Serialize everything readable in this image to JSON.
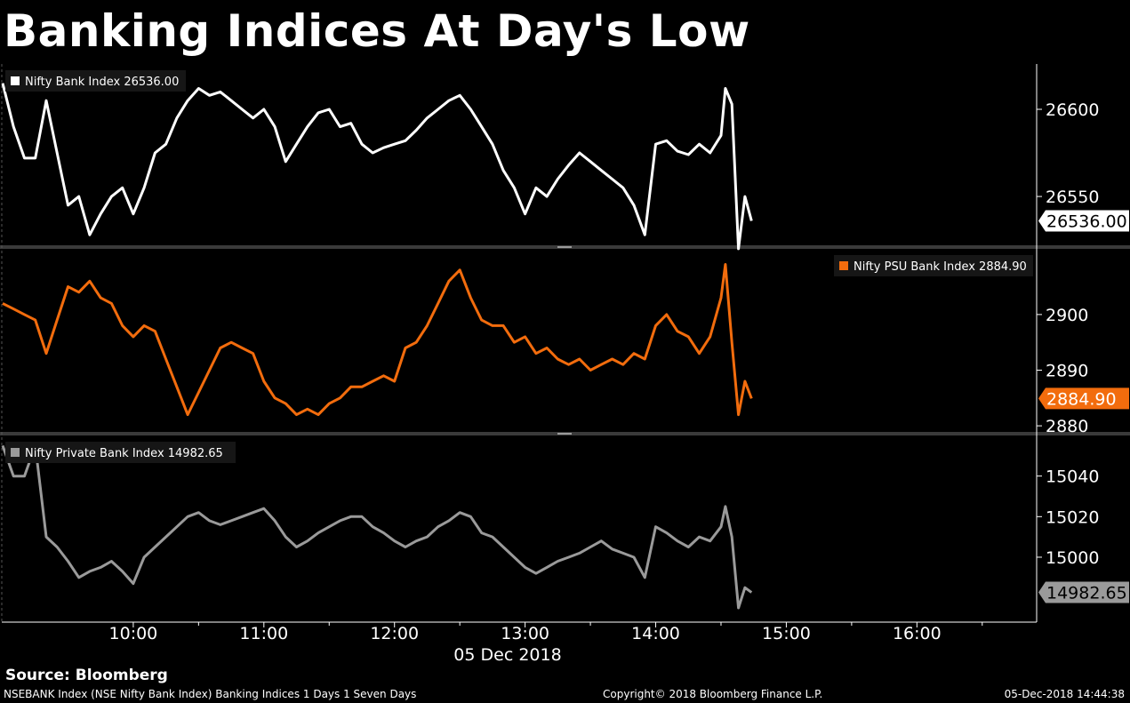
{
  "title": "Banking Indices At Day's Low",
  "source": "Source: Bloomberg",
  "footer": {
    "left": "NSEBANK Index (NSE Nifty Bank Index) Banking Indices 1 Days 1 Seven Days",
    "middle": "Copyright© 2018 Bloomberg Finance L.P.",
    "right": "05-Dec-2018 14:44:38"
  },
  "chart_data": {
    "type": "line",
    "xlabel": "05 Dec 2018",
    "x_ticks": [
      "10:00",
      "11:00",
      "12:00",
      "13:00",
      "14:00",
      "15:00",
      "16:00"
    ],
    "x_range": [
      "09:00",
      "16:55"
    ],
    "grid": false,
    "panels": [
      {
        "name": "Nifty Bank Index",
        "legend": "Nifty Bank Index 26536.00",
        "legend_position": "top-left",
        "color": "#ffffff",
        "last_value": "26536.00",
        "ylim": [
          26522,
          26626
        ],
        "y_ticks": [
          26600,
          26550
        ],
        "x": [
          "09:00",
          "09:05",
          "09:10",
          "09:15",
          "09:20",
          "09:25",
          "09:30",
          "09:35",
          "09:40",
          "09:45",
          "09:50",
          "09:55",
          "10:00",
          "10:05",
          "10:10",
          "10:15",
          "10:20",
          "10:25",
          "10:30",
          "10:35",
          "10:40",
          "10:45",
          "10:50",
          "10:55",
          "11:00",
          "11:05",
          "11:10",
          "11:15",
          "11:20",
          "11:25",
          "11:30",
          "11:35",
          "11:40",
          "11:45",
          "11:50",
          "11:55",
          "12:00",
          "12:05",
          "12:10",
          "12:15",
          "12:20",
          "12:25",
          "12:30",
          "12:35",
          "12:40",
          "12:45",
          "12:50",
          "12:55",
          "13:00",
          "13:05",
          "13:10",
          "13:15",
          "13:20",
          "13:25",
          "13:30",
          "13:35",
          "13:40",
          "13:45",
          "13:50",
          "13:55",
          "14:00",
          "14:05",
          "14:10",
          "14:15",
          "14:20",
          "14:25",
          "14:30",
          "14:32",
          "14:35",
          "14:38",
          "14:41",
          "14:44"
        ],
        "values": [
          26615,
          26590,
          26572,
          26572,
          26605,
          26575,
          26545,
          26550,
          26528,
          26540,
          26550,
          26555,
          26540,
          26555,
          26575,
          26580,
          26595,
          26605,
          26612,
          26608,
          26610,
          26605,
          26600,
          26595,
          26600,
          26590,
          26570,
          26580,
          26590,
          26598,
          26600,
          26590,
          26592,
          26580,
          26575,
          26578,
          26580,
          26582,
          26588,
          26595,
          26600,
          26605,
          26608,
          26600,
          26590,
          26580,
          26565,
          26555,
          26540,
          26555,
          26550,
          26560,
          26568,
          26575,
          26570,
          26565,
          26560,
          26555,
          26545,
          26528,
          26580,
          26582,
          26576,
          26574,
          26580,
          26575,
          26585,
          26612,
          26603,
          26520,
          26550,
          26536
        ]
      },
      {
        "name": "Nifty PSU Bank Index",
        "legend": "Nifty PSU Bank Index 2884.90",
        "legend_position": "top-right",
        "color": "#f26c0d",
        "last_value": "2884.90",
        "ylim": [
          2878.9,
          2911.8
        ],
        "y_ticks": [
          2900,
          2890,
          2880
        ],
        "x": [
          "09:00",
          "09:05",
          "09:10",
          "09:15",
          "09:20",
          "09:25",
          "09:30",
          "09:35",
          "09:40",
          "09:45",
          "09:50",
          "09:55",
          "10:00",
          "10:05",
          "10:10",
          "10:15",
          "10:20",
          "10:25",
          "10:30",
          "10:35",
          "10:40",
          "10:45",
          "10:50",
          "10:55",
          "11:00",
          "11:05",
          "11:10",
          "11:15",
          "11:20",
          "11:25",
          "11:30",
          "11:35",
          "11:40",
          "11:45",
          "11:50",
          "11:55",
          "12:00",
          "12:05",
          "12:10",
          "12:15",
          "12:20",
          "12:25",
          "12:30",
          "12:35",
          "12:40",
          "12:45",
          "12:50",
          "12:55",
          "13:00",
          "13:05",
          "13:10",
          "13:15",
          "13:20",
          "13:25",
          "13:30",
          "13:35",
          "13:40",
          "13:45",
          "13:50",
          "13:55",
          "14:00",
          "14:05",
          "14:10",
          "14:15",
          "14:20",
          "14:25",
          "14:30",
          "14:32",
          "14:35",
          "14:38",
          "14:41",
          "14:44"
        ],
        "values": [
          2902,
          2901,
          2900,
          2899,
          2893,
          2899,
          2905,
          2904,
          2906,
          2903,
          2902,
          2898,
          2896,
          2898,
          2897,
          2892,
          2887,
          2882,
          2886,
          2890,
          2894,
          2895,
          2894,
          2893,
          2888,
          2885,
          2884,
          2882,
          2883,
          2882,
          2884,
          2885,
          2887,
          2887,
          2888,
          2889,
          2888,
          2894,
          2895,
          2898,
          2902,
          2906,
          2908,
          2903,
          2899,
          2898,
          2898,
          2895,
          2896,
          2893,
          2894,
          2892,
          2891,
          2892,
          2890,
          2891,
          2892,
          2891,
          2893,
          2892,
          2898,
          2900,
          2897,
          2896,
          2893,
          2896,
          2903,
          2909,
          2895,
          2882,
          2888,
          2884.9
        ]
      },
      {
        "name": "Nifty Private Bank Index",
        "legend": "Nifty Private Bank Index 14982.65",
        "legend_position": "top-left",
        "color": "#9a9a9a",
        "last_value": "14982.65",
        "ylim": [
          14968,
          15060
        ],
        "y_ticks": [
          15040,
          15020,
          15000
        ],
        "x": [
          "09:00",
          "09:05",
          "09:10",
          "09:15",
          "09:20",
          "09:25",
          "09:30",
          "09:35",
          "09:40",
          "09:45",
          "09:50",
          "09:55",
          "10:00",
          "10:05",
          "10:10",
          "10:15",
          "10:20",
          "10:25",
          "10:30",
          "10:35",
          "10:40",
          "10:45",
          "10:50",
          "10:55",
          "11:00",
          "11:05",
          "11:10",
          "11:15",
          "11:20",
          "11:25",
          "11:30",
          "11:35",
          "11:40",
          "11:45",
          "11:50",
          "11:55",
          "12:00",
          "12:05",
          "12:10",
          "12:15",
          "12:20",
          "12:25",
          "12:30",
          "12:35",
          "12:40",
          "12:45",
          "12:50",
          "12:55",
          "13:00",
          "13:05",
          "13:10",
          "13:15",
          "13:20",
          "13:25",
          "13:30",
          "13:35",
          "13:40",
          "13:45",
          "13:50",
          "13:55",
          "14:00",
          "14:05",
          "14:10",
          "14:15",
          "14:20",
          "14:25",
          "14:30",
          "14:32",
          "14:35",
          "14:38",
          "14:41",
          "14:44"
        ],
        "values": [
          15055,
          15040,
          15040,
          15055,
          15010,
          15005,
          14998,
          14990,
          14993,
          14995,
          14998,
          14993,
          14987,
          15000,
          15005,
          15010,
          15015,
          15020,
          15022,
          15018,
          15016,
          15018,
          15020,
          15022,
          15024,
          15018,
          15010,
          15005,
          15008,
          15012,
          15015,
          15018,
          15020,
          15020,
          15015,
          15012,
          15008,
          15005,
          15008,
          15010,
          15015,
          15018,
          15022,
          15020,
          15012,
          15010,
          15005,
          15000,
          14995,
          14992,
          14995,
          14998,
          15000,
          15002,
          15005,
          15008,
          15004,
          15002,
          15000,
          14990,
          15015,
          15012,
          15008,
          15005,
          15010,
          15008,
          15015,
          15025,
          15010,
          14975,
          14985,
          14982.65
        ]
      }
    ]
  }
}
